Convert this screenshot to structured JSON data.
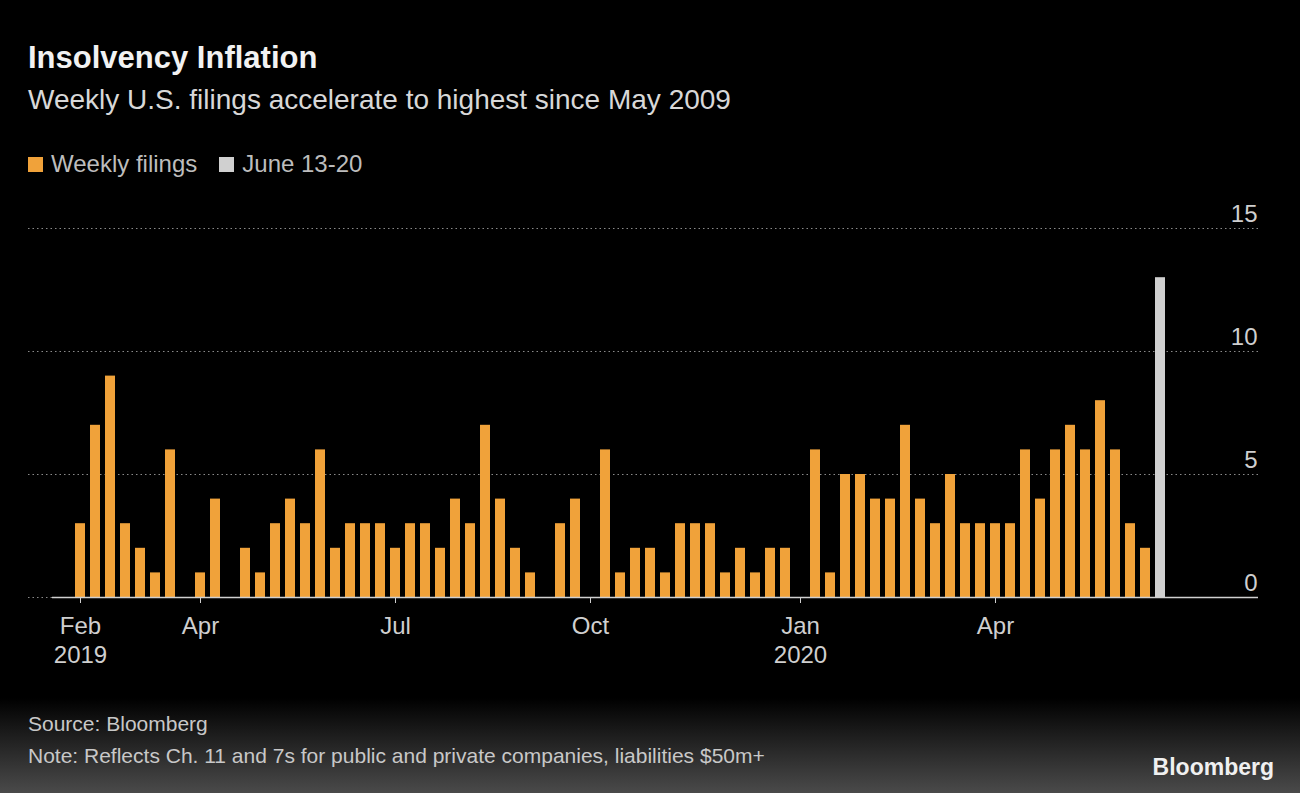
{
  "chart_data": {
    "type": "bar",
    "title": "Insolvency Inflation",
    "subtitle": "Weekly U.S. filings accelerate to highest since May 2009",
    "source": "Source: Bloomberg",
    "note": "Note: Reflects Ch. 11 and 7s for public and private companies, liabilities $50m+",
    "brand": "Bloomberg",
    "categories": [
      "Feb\n2019",
      null,
      null,
      null,
      null,
      null,
      null,
      null,
      "Apr",
      null,
      null,
      null,
      null,
      null,
      null,
      null,
      null,
      null,
      null,
      null,
      null,
      "Jul",
      null,
      null,
      null,
      null,
      null,
      null,
      null,
      null,
      null,
      null,
      null,
      null,
      "Oct",
      null,
      null,
      null,
      null,
      null,
      null,
      null,
      null,
      null,
      null,
      null,
      null,
      null,
      "Jan\n2020",
      null,
      null,
      null,
      null,
      null,
      null,
      null,
      null,
      null,
      null,
      null,
      null,
      "Apr",
      null,
      null,
      null,
      null,
      null,
      null,
      null,
      null,
      null,
      null,
      null
    ],
    "series": [
      {
        "name": "Weekly filings",
        "color": "#f0a23a",
        "values": [
          3,
          7,
          9,
          3,
          2,
          1,
          6,
          0,
          1,
          4,
          0,
          2,
          1,
          3,
          4,
          3,
          6,
          2,
          3,
          3,
          3,
          2,
          3,
          3,
          2,
          4,
          3,
          7,
          4,
          2,
          1,
          0,
          3,
          4,
          0,
          6,
          1,
          2,
          2,
          1,
          3,
          3,
          3,
          1,
          2,
          1,
          2,
          2,
          0,
          6,
          1,
          5,
          5,
          4,
          4,
          7,
          4,
          3,
          5,
          3,
          3,
          3,
          3,
          6,
          4,
          6,
          7,
          6,
          8,
          6,
          3,
          2,
          null
        ]
      },
      {
        "name": "June 13-20",
        "color": "#d0d0d0",
        "values": [
          null,
          null,
          null,
          null,
          null,
          null,
          null,
          null,
          null,
          null,
          null,
          null,
          null,
          null,
          null,
          null,
          null,
          null,
          null,
          null,
          null,
          null,
          null,
          null,
          null,
          null,
          null,
          null,
          null,
          null,
          null,
          null,
          null,
          null,
          null,
          null,
          null,
          null,
          null,
          null,
          null,
          null,
          null,
          null,
          null,
          null,
          null,
          null,
          null,
          null,
          null,
          null,
          null,
          null,
          null,
          null,
          null,
          null,
          null,
          null,
          null,
          null,
          null,
          null,
          null,
          null,
          null,
          null,
          null,
          null,
          null,
          null,
          13
        ]
      }
    ],
    "ylim": [
      0,
      15
    ],
    "yticks": [
      0,
      5,
      10,
      15
    ],
    "grid": true,
    "legend": "top-left"
  }
}
